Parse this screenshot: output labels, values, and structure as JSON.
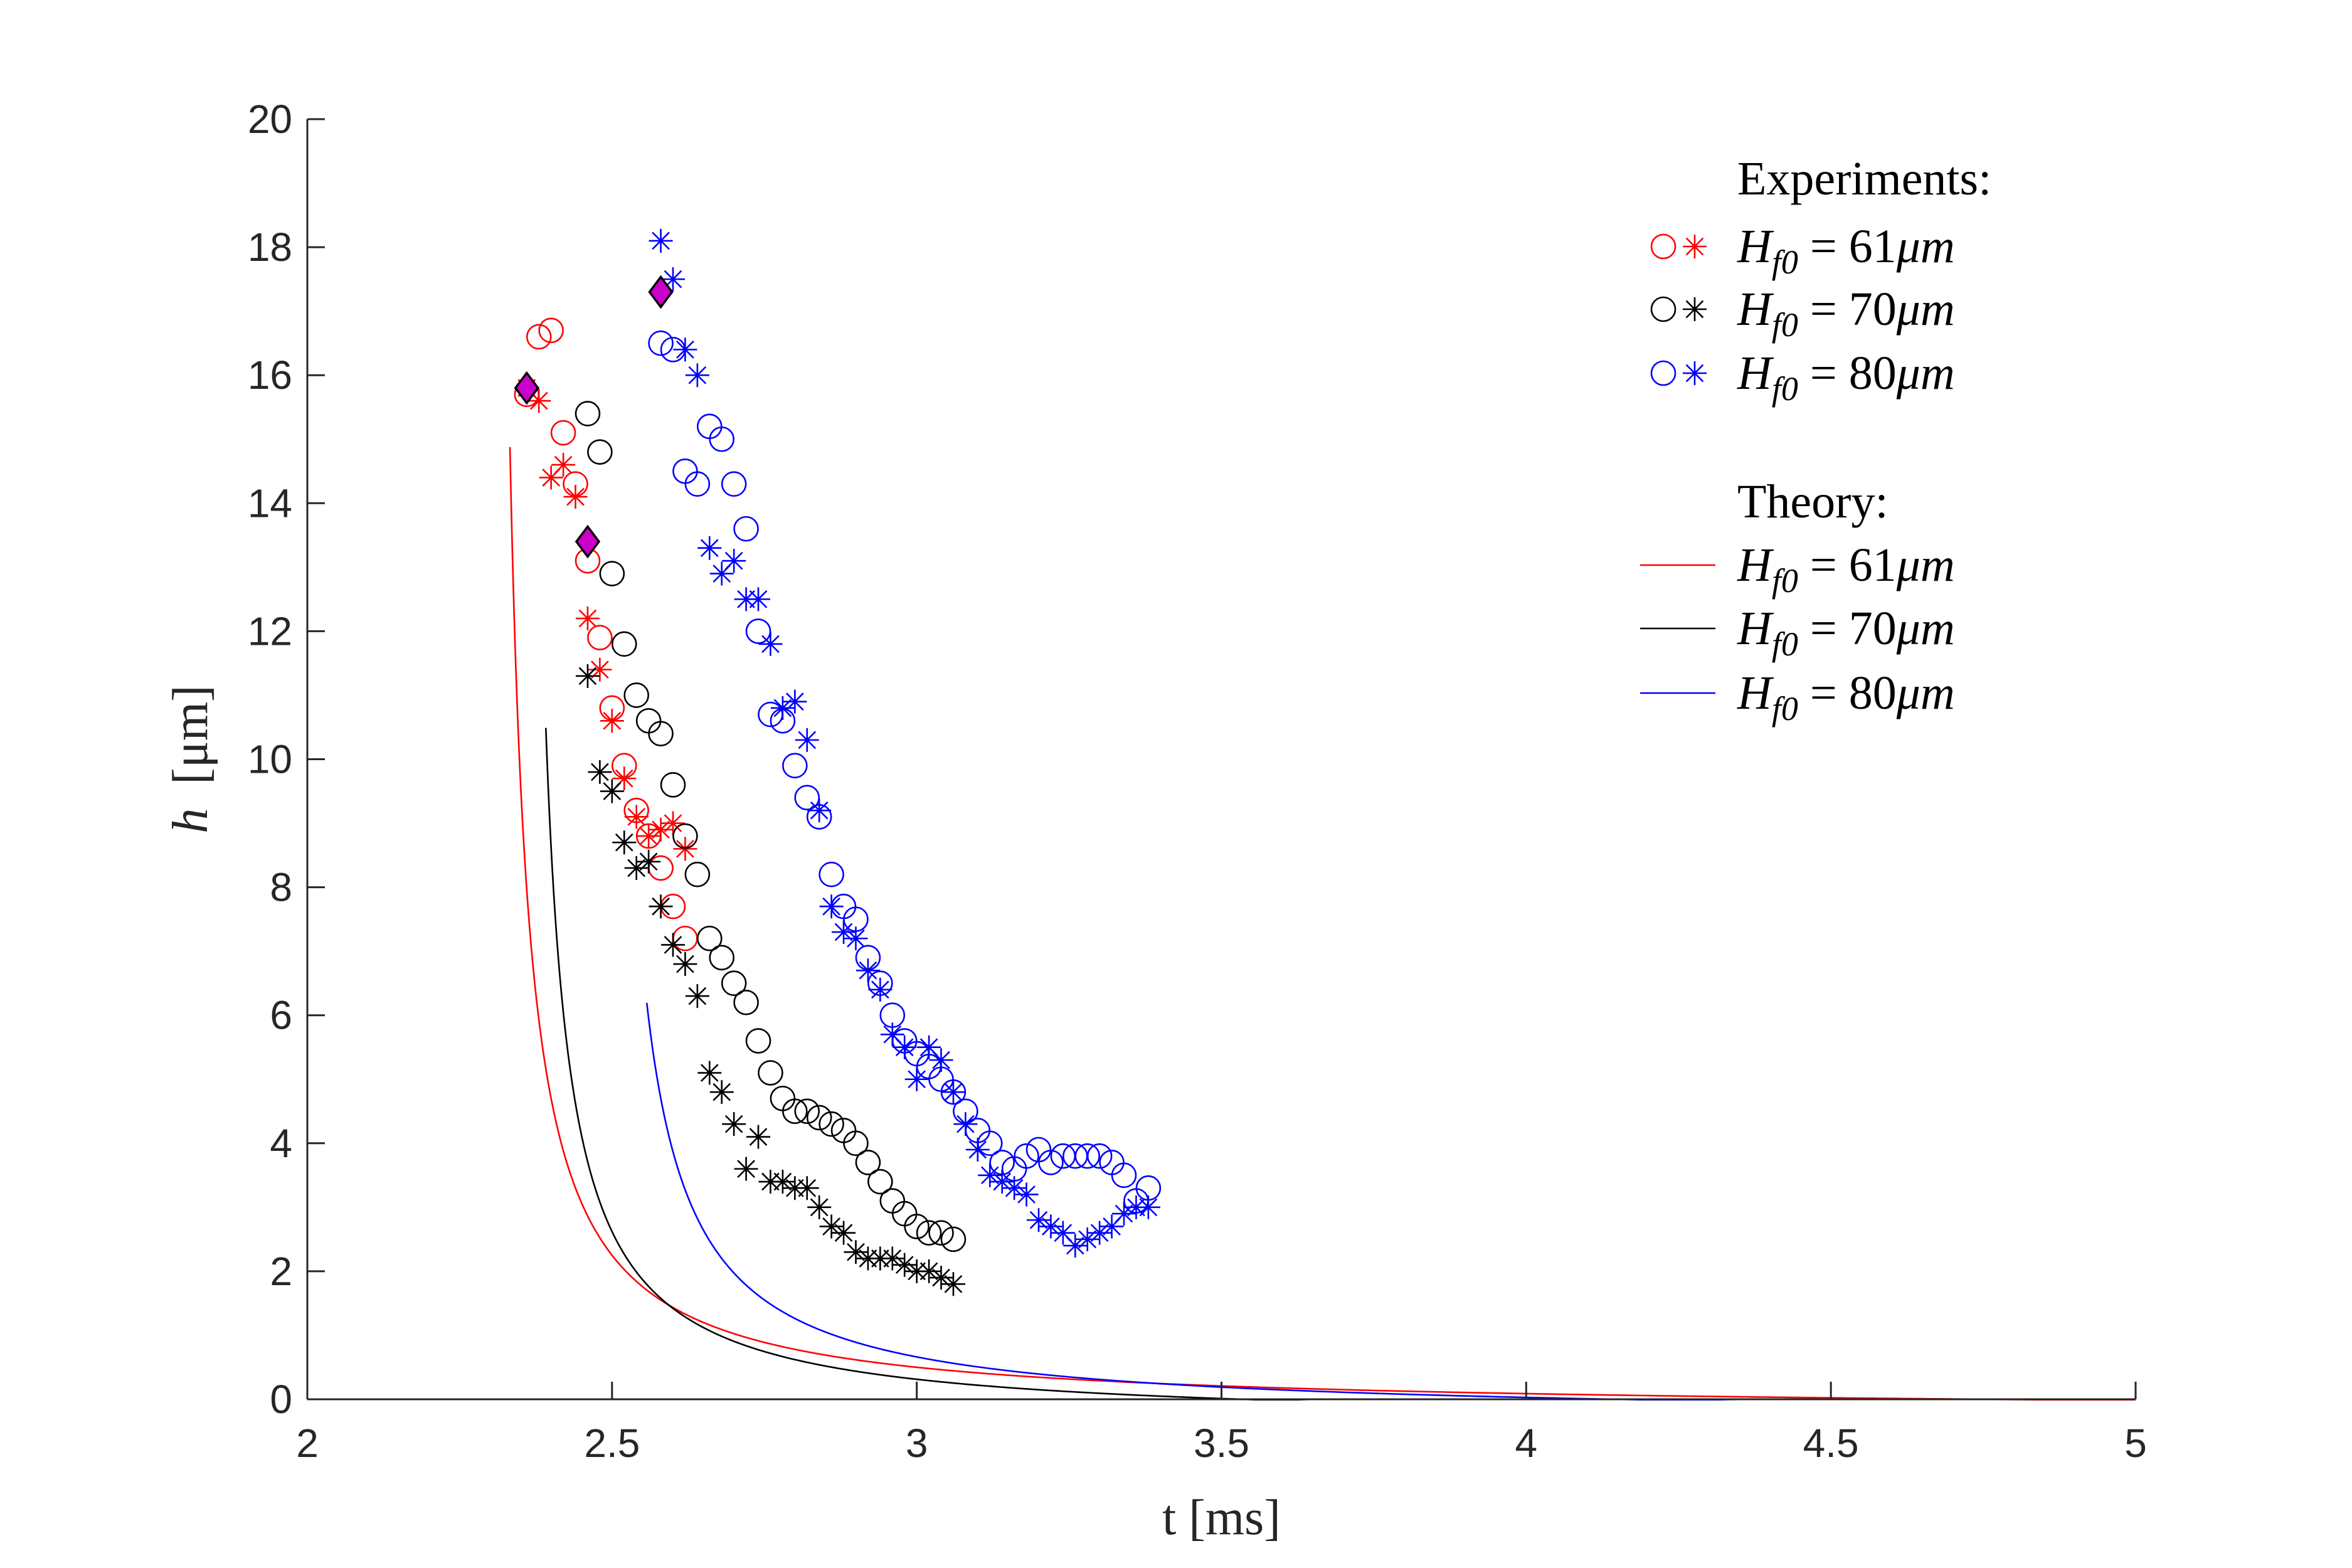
{
  "chart_data": {
    "type": "scatter",
    "xlabel": "t [ms]",
    "ylabel_symbol": "h",
    "ylabel_unit": "[μm]",
    "xlim": [
      2,
      5
    ],
    "ylim": [
      0,
      20
    ],
    "xticks": [
      2,
      2.5,
      3,
      3.5,
      4,
      4.5,
      5
    ],
    "yticks": [
      0,
      2,
      4,
      6,
      8,
      10,
      12,
      14,
      16,
      18,
      20
    ],
    "xtick_labels": [
      "2",
      "2.5",
      "3",
      "3.5",
      "4",
      "4.5",
      "5"
    ],
    "ytick_labels": [
      "0",
      "2",
      "4",
      "6",
      "8",
      "10",
      "12",
      "14",
      "16",
      "18",
      "20"
    ],
    "grid": false,
    "legend_position": "top-right",
    "legend": {
      "experiments_heading": "Experiments:",
      "theory_heading": "Theory:",
      "entries_experiments": [
        {
          "prefix": "H",
          "subscript": "f0",
          "equals": " = 61",
          "unit": "μm"
        },
        {
          "prefix": "H",
          "subscript": "f0",
          "equals": " = 70",
          "unit": "μm"
        },
        {
          "prefix": "H",
          "subscript": "f0",
          "equals": " = 80",
          "unit": "μm"
        }
      ],
      "entries_theory": [
        {
          "prefix": "H",
          "subscript": "f0",
          "equals": " = 61",
          "unit": "μm"
        },
        {
          "prefix": "H",
          "subscript": "f0",
          "equals": " = 70",
          "unit": "μm"
        },
        {
          "prefix": "H",
          "subscript": "f0",
          "equals": " = 80",
          "unit": "μm"
        }
      ]
    },
    "series": [
      {
        "name": "H_f0 = 61 μm",
        "color": "#ff0000",
        "theory": {
          "t0": 2.3,
          "a": 0.49,
          "b": 0.2,
          "t_start": 2.3325
        },
        "circles": [
          [
            2.36,
            15.7
          ],
          [
            2.38,
            16.6
          ],
          [
            2.4,
            16.7
          ],
          [
            2.42,
            15.1
          ],
          [
            2.44,
            14.3
          ],
          [
            2.46,
            13.1
          ],
          [
            2.48,
            11.9
          ],
          [
            2.5,
            10.8
          ],
          [
            2.52,
            9.9
          ],
          [
            2.54,
            9.2
          ],
          [
            2.56,
            8.8
          ],
          [
            2.58,
            8.3
          ],
          [
            2.6,
            7.7
          ],
          [
            2.62,
            7.2
          ]
        ],
        "stars": [
          [
            2.36,
            15.8
          ],
          [
            2.38,
            15.6
          ],
          [
            2.4,
            14.4
          ],
          [
            2.42,
            14.6
          ],
          [
            2.44,
            14.1
          ],
          [
            2.46,
            12.2
          ],
          [
            2.48,
            11.4
          ],
          [
            2.5,
            10.6
          ],
          [
            2.52,
            9.7
          ],
          [
            2.54,
            9.1
          ],
          [
            2.56,
            8.8
          ],
          [
            2.58,
            8.9
          ],
          [
            2.6,
            9.0
          ],
          [
            2.62,
            8.6
          ]
        ],
        "marker": [
          2.36,
          15.8
        ]
      },
      {
        "name": "H_f0 = 70 μm",
        "color": "#000000",
        "theory": {
          "t0": 2.35,
          "a": 0.45,
          "b": 0.38,
          "t_start": 2.3914
        },
        "circles": [
          [
            2.46,
            15.4
          ],
          [
            2.48,
            14.8
          ],
          [
            2.5,
            12.9
          ],
          [
            2.52,
            11.8
          ],
          [
            2.54,
            11.0
          ],
          [
            2.56,
            10.6
          ],
          [
            2.58,
            10.4
          ],
          [
            2.6,
            9.6
          ],
          [
            2.62,
            8.8
          ],
          [
            2.64,
            8.2
          ],
          [
            2.66,
            7.2
          ],
          [
            2.68,
            6.9
          ],
          [
            2.7,
            6.5
          ],
          [
            2.72,
            6.2
          ],
          [
            2.74,
            5.6
          ],
          [
            2.76,
            5.1
          ],
          [
            2.78,
            4.7
          ],
          [
            2.8,
            4.5
          ],
          [
            2.82,
            4.5
          ],
          [
            2.84,
            4.4
          ],
          [
            2.86,
            4.3
          ],
          [
            2.88,
            4.2
          ],
          [
            2.9,
            4.0
          ],
          [
            2.92,
            3.7
          ],
          [
            2.94,
            3.4
          ],
          [
            2.96,
            3.1
          ],
          [
            2.98,
            2.9
          ],
          [
            3.0,
            2.7
          ],
          [
            3.02,
            2.6
          ],
          [
            3.04,
            2.6
          ],
          [
            3.06,
            2.5
          ]
        ],
        "stars": [
          [
            2.46,
            11.3
          ],
          [
            2.48,
            9.8
          ],
          [
            2.5,
            9.5
          ],
          [
            2.52,
            8.7
          ],
          [
            2.54,
            8.3
          ],
          [
            2.56,
            8.4
          ],
          [
            2.58,
            7.7
          ],
          [
            2.6,
            7.1
          ],
          [
            2.62,
            6.8
          ],
          [
            2.64,
            6.3
          ],
          [
            2.66,
            5.1
          ],
          [
            2.68,
            4.8
          ],
          [
            2.7,
            4.3
          ],
          [
            2.72,
            3.6
          ],
          [
            2.74,
            4.1
          ],
          [
            2.76,
            3.4
          ],
          [
            2.78,
            3.4
          ],
          [
            2.8,
            3.3
          ],
          [
            2.82,
            3.3
          ],
          [
            2.84,
            3.0
          ],
          [
            2.86,
            2.7
          ],
          [
            2.88,
            2.6
          ],
          [
            2.9,
            2.3
          ],
          [
            2.92,
            2.2
          ],
          [
            2.94,
            2.2
          ],
          [
            2.96,
            2.2
          ],
          [
            2.98,
            2.1
          ],
          [
            3.0,
            2.0
          ],
          [
            3.02,
            2.0
          ],
          [
            3.04,
            1.9
          ],
          [
            3.06,
            1.8
          ]
        ],
        "marker": [
          2.46,
          13.4
        ]
      },
      {
        "name": "H_f0 = 80 μm",
        "color": "#0000ff",
        "theory": {
          "t0": 2.48,
          "a": 0.5,
          "b": 0.3,
          "t_start": 2.557
        },
        "circles": [
          [
            2.58,
            16.5
          ],
          [
            2.6,
            16.4
          ],
          [
            2.62,
            14.5
          ],
          [
            2.64,
            14.3
          ],
          [
            2.66,
            15.2
          ],
          [
            2.68,
            15.0
          ],
          [
            2.7,
            14.3
          ],
          [
            2.72,
            13.6
          ],
          [
            2.74,
            12.0
          ],
          [
            2.76,
            10.7
          ],
          [
            2.78,
            10.6
          ],
          [
            2.8,
            9.9
          ],
          [
            2.82,
            9.4
          ],
          [
            2.84,
            9.1
          ],
          [
            2.86,
            8.2
          ],
          [
            2.88,
            7.7
          ],
          [
            2.9,
            7.5
          ],
          [
            2.92,
            6.9
          ],
          [
            2.94,
            6.5
          ],
          [
            2.96,
            6.0
          ],
          [
            2.98,
            5.6
          ],
          [
            3.0,
            5.4
          ],
          [
            3.02,
            5.2
          ],
          [
            3.04,
            5.0
          ],
          [
            3.06,
            4.8
          ],
          [
            3.08,
            4.5
          ],
          [
            3.1,
            4.2
          ],
          [
            3.12,
            4.0
          ],
          [
            3.14,
            3.7
          ],
          [
            3.16,
            3.6
          ],
          [
            3.18,
            3.8
          ],
          [
            3.2,
            3.9
          ],
          [
            3.22,
            3.7
          ],
          [
            3.24,
            3.8
          ],
          [
            3.26,
            3.8
          ],
          [
            3.28,
            3.8
          ],
          [
            3.3,
            3.8
          ],
          [
            3.32,
            3.7
          ],
          [
            3.34,
            3.5
          ],
          [
            3.36,
            3.1
          ],
          [
            3.38,
            3.3
          ]
        ],
        "stars": [
          [
            2.58,
            18.1
          ],
          [
            2.6,
            17.5
          ],
          [
            2.62,
            16.4
          ],
          [
            2.64,
            16.0
          ],
          [
            2.66,
            13.3
          ],
          [
            2.68,
            12.9
          ],
          [
            2.7,
            13.1
          ],
          [
            2.72,
            12.5
          ],
          [
            2.74,
            12.5
          ],
          [
            2.76,
            11.8
          ],
          [
            2.78,
            10.8
          ],
          [
            2.8,
            10.9
          ],
          [
            2.82,
            10.3
          ],
          [
            2.84,
            9.2
          ],
          [
            2.86,
            7.7
          ],
          [
            2.88,
            7.3
          ],
          [
            2.9,
            7.2
          ],
          [
            2.92,
            6.7
          ],
          [
            2.94,
            6.4
          ],
          [
            2.96,
            5.7
          ],
          [
            2.98,
            5.5
          ],
          [
            3.0,
            5.0
          ],
          [
            3.02,
            5.5
          ],
          [
            3.04,
            5.3
          ],
          [
            3.06,
            4.8
          ],
          [
            3.08,
            4.3
          ],
          [
            3.1,
            3.9
          ],
          [
            3.12,
            3.5
          ],
          [
            3.14,
            3.4
          ],
          [
            3.16,
            3.3
          ],
          [
            3.18,
            3.2
          ],
          [
            3.2,
            2.8
          ],
          [
            3.22,
            2.7
          ],
          [
            3.24,
            2.6
          ],
          [
            3.26,
            2.4
          ],
          [
            3.28,
            2.5
          ],
          [
            3.3,
            2.6
          ],
          [
            3.32,
            2.7
          ],
          [
            3.34,
            2.9
          ],
          [
            3.36,
            3.0
          ],
          [
            3.38,
            3.0
          ]
        ],
        "marker": [
          2.58,
          17.3
        ]
      }
    ],
    "special_marker_color": "#cc00cc"
  }
}
